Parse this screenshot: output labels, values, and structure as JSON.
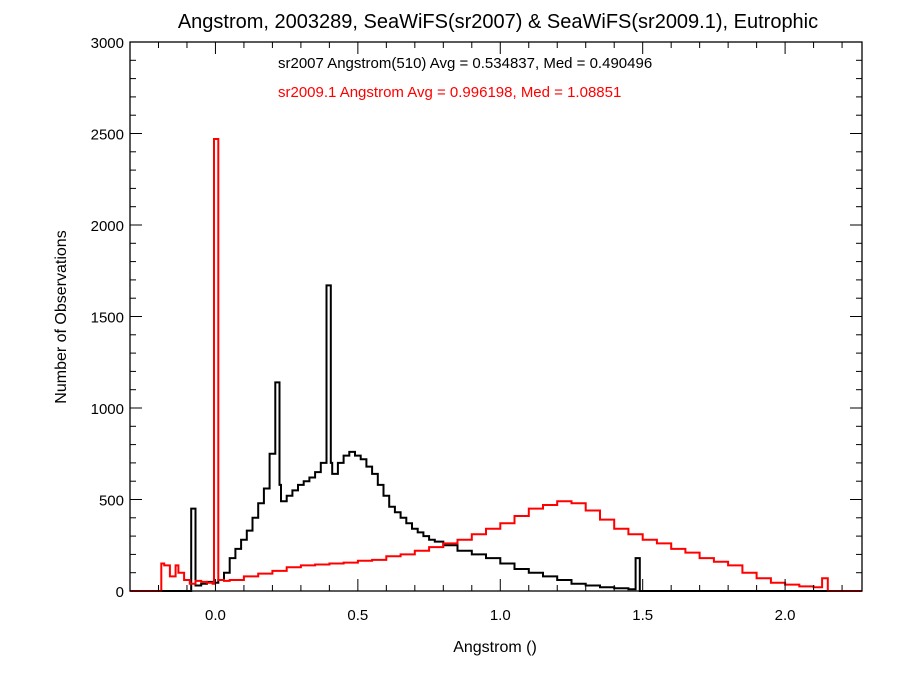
{
  "chart_data": {
    "type": "histogram",
    "title": "Angstrom, 2003289, SeaWiFS(sr2007) & SeaWiFS(sr2009.1), Eutrophic",
    "xlabel": "Angstrom ()",
    "ylabel": "Number of Observations",
    "xlim": [
      -0.3,
      2.27
    ],
    "ylim": [
      0,
      3000
    ],
    "x_ticks": [
      {
        "value": 0.0,
        "label": "0.0"
      },
      {
        "value": 0.5,
        "label": "0.5"
      },
      {
        "value": 1.0,
        "label": "1.0"
      },
      {
        "value": 1.5,
        "label": "1.5"
      },
      {
        "value": 2.0,
        "label": "2.0"
      }
    ],
    "y_ticks": [
      {
        "value": 0,
        "label": "0"
      },
      {
        "value": 500,
        "label": "500"
      },
      {
        "value": 1000,
        "label": "1000"
      },
      {
        "value": 1500,
        "label": "1500"
      },
      {
        "value": 2000,
        "label": "2000"
      },
      {
        "value": 2500,
        "label": "2500"
      },
      {
        "value": 3000,
        "label": "3000"
      }
    ],
    "grid": false,
    "annotations": [
      {
        "text": "sr2007 Angstrom(510) Avg = 0.534837, Med = 0.490496",
        "color": "#000000"
      },
      {
        "text": "sr2009.1 Angstrom Avg = 0.996198, Med = 1.08851",
        "color": "#ff0000"
      }
    ],
    "series": [
      {
        "color": "#000000",
        "x": [
          -0.3,
          -0.09,
          -0.085,
          -0.075,
          -0.07,
          -0.05,
          -0.03,
          -0.01,
          0.01,
          0.03,
          0.05,
          0.07,
          0.09,
          0.11,
          0.13,
          0.15,
          0.17,
          0.19,
          0.21,
          0.215,
          0.225,
          0.23,
          0.25,
          0.27,
          0.29,
          0.31,
          0.33,
          0.35,
          0.37,
          0.39,
          0.395,
          0.405,
          0.41,
          0.43,
          0.45,
          0.47,
          0.49,
          0.51,
          0.53,
          0.55,
          0.57,
          0.59,
          0.61,
          0.63,
          0.65,
          0.67,
          0.69,
          0.71,
          0.73,
          0.75,
          0.77,
          0.8,
          0.85,
          0.9,
          0.95,
          1.0,
          1.05,
          1.1,
          1.15,
          1.2,
          1.25,
          1.3,
          1.35,
          1.4,
          1.45,
          1.475,
          1.48,
          1.49,
          1.5,
          2.27
        ],
        "values": [
          0,
          0,
          450,
          450,
          30,
          40,
          50,
          45,
          60,
          100,
          180,
          230,
          280,
          330,
          400,
          480,
          560,
          750,
          1140,
          1140,
          580,
          490,
          520,
          550,
          580,
          600,
          620,
          650,
          700,
          1670,
          1670,
          700,
          640,
          700,
          740,
          760,
          740,
          720,
          680,
          640,
          580,
          520,
          460,
          430,
          400,
          370,
          340,
          320,
          300,
          280,
          270,
          250,
          220,
          200,
          180,
          150,
          120,
          100,
          80,
          60,
          40,
          30,
          20,
          15,
          10,
          180,
          180,
          0,
          0,
          0
        ]
      },
      {
        "color": "#ff0000",
        "x": [
          -0.3,
          -0.2,
          -0.19,
          -0.18,
          -0.16,
          -0.14,
          -0.13,
          -0.11,
          -0.09,
          -0.07,
          -0.05,
          -0.03,
          -0.01,
          -0.005,
          0.005,
          0.01,
          0.03,
          0.05,
          0.1,
          0.15,
          0.2,
          0.25,
          0.3,
          0.35,
          0.4,
          0.45,
          0.5,
          0.55,
          0.6,
          0.65,
          0.7,
          0.75,
          0.8,
          0.85,
          0.9,
          0.95,
          1.0,
          1.05,
          1.1,
          1.15,
          1.2,
          1.25,
          1.3,
          1.35,
          1.4,
          1.45,
          1.5,
          1.55,
          1.6,
          1.65,
          1.7,
          1.75,
          1.8,
          1.85,
          1.9,
          1.95,
          2.0,
          2.05,
          2.1,
          2.13,
          2.15,
          2.27
        ],
        "values": [
          0,
          0,
          150,
          140,
          80,
          140,
          100,
          60,
          40,
          55,
          50,
          45,
          40,
          2470,
          2470,
          60,
          55,
          60,
          80,
          95,
          110,
          130,
          140,
          145,
          150,
          155,
          165,
          170,
          190,
          200,
          220,
          240,
          260,
          280,
          310,
          340,
          370,
          410,
          450,
          470,
          490,
          480,
          440,
          390,
          340,
          310,
          280,
          260,
          230,
          210,
          180,
          160,
          140,
          100,
          70,
          45,
          35,
          25,
          20,
          70,
          0,
          0
        ]
      }
    ]
  }
}
